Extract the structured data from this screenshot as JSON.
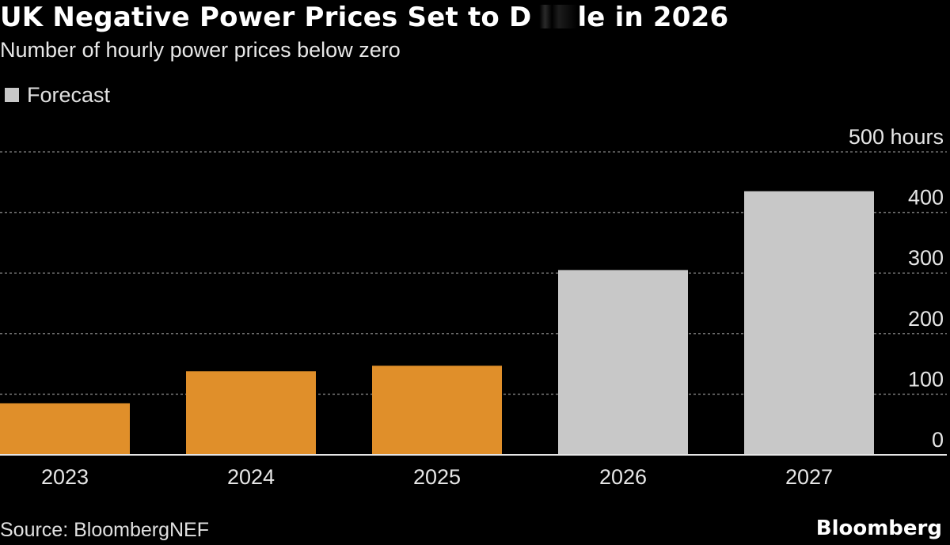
{
  "header": {
    "title_before": "UK Negative Power Prices Set to D",
    "title_after": "le in 2026",
    "subtitle": "Number of hourly power prices below zero"
  },
  "legend": {
    "label": "Forecast",
    "color": "#c8c8c8"
  },
  "footer": {
    "source": "Source: BloombergNEF",
    "brand": "Bloomberg"
  },
  "colors": {
    "actual": "#e08f2a",
    "forecast": "#c8c8c8",
    "grid": "#6e6e6e",
    "baseline": "#e6e6e6",
    "background": "#000000"
  },
  "chart_data": {
    "type": "bar",
    "title": "UK Negative Power Prices Set to D…le in 2026",
    "subtitle": "Number of hourly power prices below zero",
    "categories": [
      "2023",
      "2024",
      "2025",
      "2026",
      "2027"
    ],
    "values": [
      85,
      138,
      147,
      305,
      435
    ],
    "forecast": [
      false,
      false,
      false,
      true,
      true
    ],
    "ylabel": "hours",
    "ylim": [
      0,
      500
    ],
    "yticks": [
      0,
      100,
      200,
      300,
      400,
      500
    ],
    "ytick_labels": [
      "0",
      "100",
      "200",
      "300",
      "400",
      "500 hours"
    ],
    "legend": [
      "Forecast"
    ],
    "grid": true,
    "y_axis_position": "right"
  }
}
